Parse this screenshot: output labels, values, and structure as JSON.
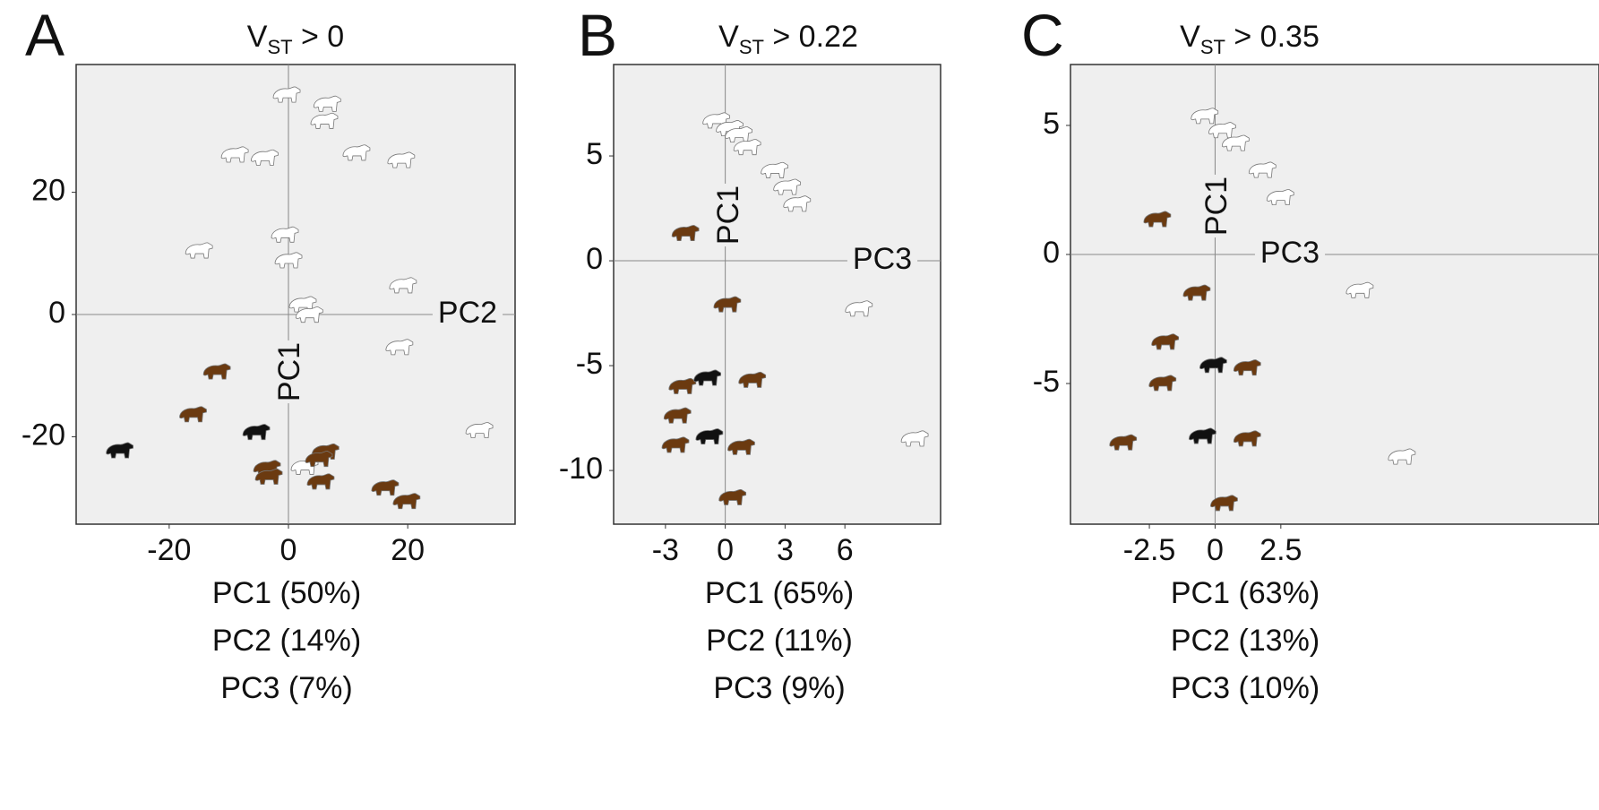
{
  "chart_data": [
    {
      "type": "scatter",
      "panel": "A",
      "title": [
        "V",
        "ST",
        " > 0"
      ],
      "xlabel": "PC2",
      "ylabel": "PC1",
      "variance": [
        "PC1 (50%)",
        "PC2 (14%)",
        "PC3 (7%)"
      ],
      "xlim": [
        -35.6,
        38
      ],
      "ylim": [
        -34.3,
        40.9
      ],
      "xticks": [
        -20,
        0,
        20
      ],
      "yticks": [
        20,
        0,
        -20
      ],
      "series": [
        {
          "color": "#ffffff",
          "x": [
            -0.3,
            6.5,
            6,
            -9,
            -4,
            11.4,
            18.9,
            -15,
            -0.6,
            0,
            19.2,
            2.4,
            3.5,
            18.6,
            32,
            2.7
          ],
          "y": [
            35.9,
            34.4,
            31.6,
            26.1,
            25.6,
            26.4,
            25.2,
            10.4,
            13,
            8.8,
            4.7,
            1.6,
            -0.1,
            -5.4,
            -19,
            -25
          ]
        },
        {
          "color": "#6b3a10",
          "x": [
            -12,
            -16,
            -3.6,
            -3.3,
            6.2,
            5.1,
            5.4,
            16.2,
            19.8
          ],
          "y": [
            -9.4,
            -16.4,
            -25.2,
            -26.6,
            -22.5,
            -23.7,
            -27.4,
            -28.4,
            -30.6
          ]
        },
        {
          "color": "#111111",
          "x": [
            -28.3,
            -5.4
          ],
          "y": [
            -22.3,
            -19.3
          ]
        }
      ]
    },
    {
      "type": "scatter",
      "panel": "B",
      "title": [
        "V",
        "ST",
        " > 0.22"
      ],
      "xlabel": "PC3",
      "ylabel": "PC1",
      "variance": [
        "PC1 (65%)",
        "PC2 (11%)",
        "PC3 (9%)"
      ],
      "xlim": [
        -5.6,
        10.8
      ],
      "ylim": [
        -12.56,
        9.36
      ],
      "xticks": [
        -3,
        0,
        3,
        6
      ],
      "yticks": [
        5,
        0,
        -5,
        -10
      ],
      "series": [
        {
          "color": "#ffffff",
          "x": [
            -0.45,
            0.22,
            0.67,
            1.1,
            2.47,
            3.1,
            3.6,
            6.7,
            9.5
          ],
          "y": [
            6.67,
            6.3,
            6.0,
            5.4,
            4.3,
            3.5,
            2.7,
            -2.3,
            -8.5
          ]
        },
        {
          "color": "#6b3a10",
          "x": [
            -2.0,
            0.1,
            -2.15,
            1.35,
            -2.4,
            -2.5,
            0.8,
            0.36
          ],
          "y": [
            1.3,
            -2.1,
            -6.0,
            -5.7,
            -7.4,
            -8.8,
            -8.9,
            -11.3
          ]
        },
        {
          "color": "#111111",
          "x": [
            -0.9,
            -0.8
          ],
          "y": [
            -5.6,
            -8.4
          ]
        }
      ]
    },
    {
      "type": "scatter",
      "panel": "C",
      "title": [
        "V",
        "ST",
        " > 0.35"
      ],
      "xlabel": "PC3",
      "ylabel": "PC1",
      "variance": [
        "PC1 (63%)",
        "PC2 (13%)",
        "PC3 (10%)"
      ],
      "xlim": [
        -5.5,
        14.6
      ],
      "ylim": [
        -10.45,
        7.36
      ],
      "xticks": [
        -2.5,
        0,
        2.5
      ],
      "yticks": [
        5,
        0,
        -5
      ],
      "series": [
        {
          "color": "#ffffff",
          "x": [
            -0.4,
            0.27,
            0.78,
            1.8,
            2.48,
            5.5,
            7.1
          ],
          "y": [
            5.35,
            4.8,
            4.3,
            3.26,
            2.2,
            -1.4,
            -7.85
          ]
        },
        {
          "color": "#6b3a10",
          "x": [
            -2.2,
            -0.7,
            -1.9,
            -2.0,
            1.22,
            -3.5,
            1.22,
            0.34
          ],
          "y": [
            1.35,
            -1.5,
            -3.4,
            -5.0,
            -4.4,
            -7.3,
            -7.15,
            -9.65
          ]
        },
        {
          "color": "#111111",
          "x": [
            -0.07,
            -0.48
          ],
          "y": [
            -4.3,
            -7.05
          ]
        }
      ]
    }
  ]
}
